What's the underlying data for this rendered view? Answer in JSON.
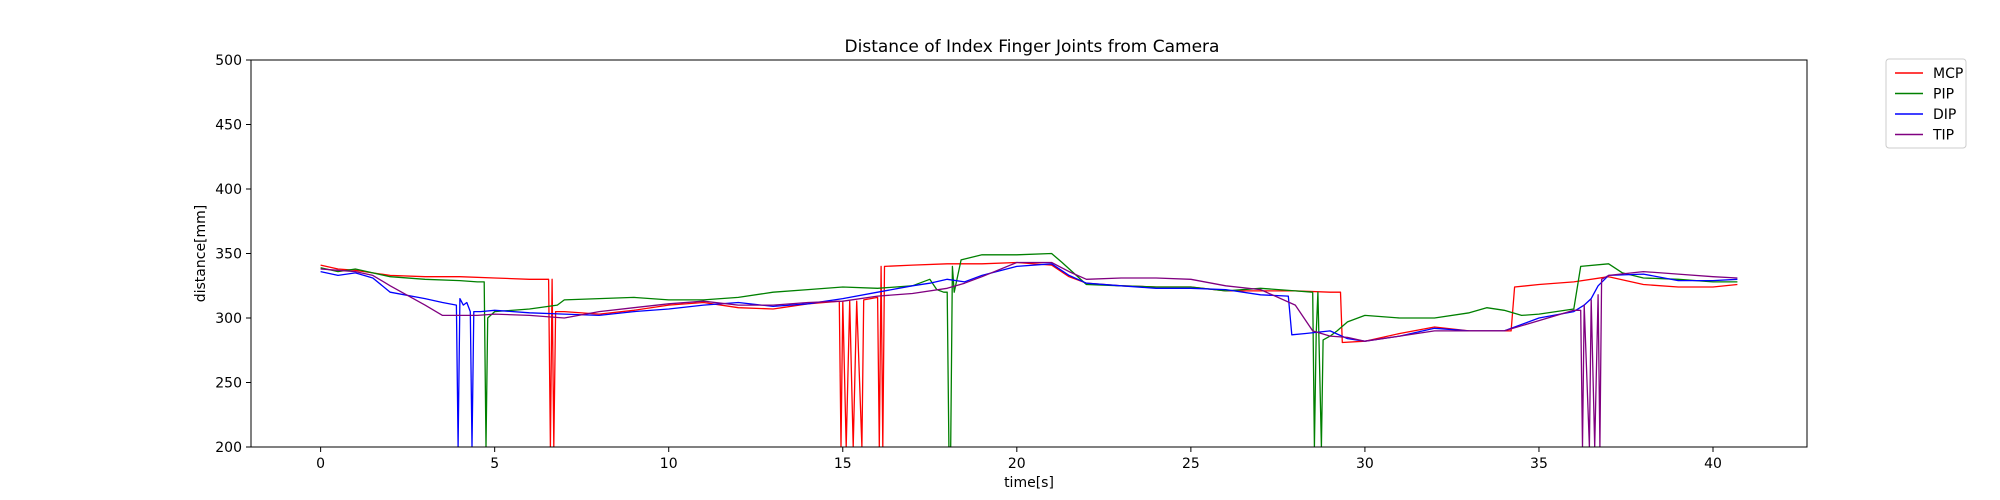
{
  "chart_data": {
    "type": "line",
    "title": "Distance of Index Finger Joints from Camera",
    "xlabel": "time[s]",
    "ylabel": "distance[mm]",
    "xlim": [
      -2,
      42.7
    ],
    "ylim": [
      200,
      500
    ],
    "xticks": [
      0,
      5,
      10,
      15,
      20,
      25,
      30,
      35,
      40
    ],
    "yticks": [
      200,
      250,
      300,
      350,
      400,
      450,
      500
    ],
    "grid": false,
    "legend_position": "outside-top-right",
    "series": [
      {
        "name": "MCP",
        "color": "#ff0000",
        "points": [
          [
            0,
            341
          ],
          [
            0.5,
            338
          ],
          [
            1,
            337
          ],
          [
            1.5,
            335
          ],
          [
            2,
            333
          ],
          [
            3,
            332
          ],
          [
            4,
            332
          ],
          [
            5,
            331
          ],
          [
            6,
            330
          ],
          [
            6.55,
            330
          ],
          [
            6.6,
            200
          ],
          [
            6.65,
            330
          ],
          [
            6.7,
            200
          ],
          [
            6.75,
            305
          ],
          [
            7,
            305
          ],
          [
            8,
            303
          ],
          [
            9,
            306
          ],
          [
            10,
            310
          ],
          [
            11,
            312
          ],
          [
            12,
            308
          ],
          [
            13,
            307
          ],
          [
            14,
            311
          ],
          [
            14.9,
            313
          ],
          [
            14.95,
            200
          ],
          [
            15,
            313
          ],
          [
            15.1,
            200
          ],
          [
            15.2,
            313
          ],
          [
            15.3,
            200
          ],
          [
            15.4,
            313
          ],
          [
            15.55,
            200
          ],
          [
            15.6,
            314
          ],
          [
            16,
            316
          ],
          [
            16.05,
            200
          ],
          [
            16.1,
            340
          ],
          [
            16.15,
            200
          ],
          [
            16.2,
            340
          ],
          [
            17,
            341
          ],
          [
            18,
            342
          ],
          [
            19,
            342
          ],
          [
            20,
            343
          ],
          [
            21,
            341
          ],
          [
            21.5,
            332
          ],
          [
            22,
            327
          ],
          [
            23,
            325
          ],
          [
            24,
            324
          ],
          [
            25,
            324
          ],
          [
            26,
            321
          ],
          [
            27,
            321
          ],
          [
            28,
            321
          ],
          [
            29,
            320
          ],
          [
            29.3,
            320
          ],
          [
            29.35,
            281
          ],
          [
            30,
            282
          ],
          [
            31,
            288
          ],
          [
            32,
            293
          ],
          [
            33,
            290
          ],
          [
            34,
            290
          ],
          [
            34.2,
            290
          ],
          [
            34.3,
            324
          ],
          [
            35,
            326
          ],
          [
            36,
            328
          ],
          [
            37,
            332
          ],
          [
            38,
            326
          ],
          [
            39,
            324
          ],
          [
            40,
            324
          ],
          [
            40.7,
            326
          ]
        ]
      },
      {
        "name": "PIP",
        "color": "#008000",
        "points": [
          [
            0,
            339
          ],
          [
            0.5,
            336
          ],
          [
            1,
            338
          ],
          [
            1.5,
            335
          ],
          [
            2,
            332
          ],
          [
            3,
            330
          ],
          [
            4,
            329
          ],
          [
            4.5,
            328
          ],
          [
            4.7,
            328
          ],
          [
            4.75,
            200
          ],
          [
            4.8,
            300
          ],
          [
            5,
            305
          ],
          [
            6,
            307
          ],
          [
            6.8,
            310
          ],
          [
            7,
            314
          ],
          [
            8,
            315
          ],
          [
            9,
            316
          ],
          [
            10,
            314
          ],
          [
            11,
            314
          ],
          [
            12,
            316
          ],
          [
            13,
            320
          ],
          [
            14,
            322
          ],
          [
            15,
            324
          ],
          [
            16,
            323
          ],
          [
            17,
            325
          ],
          [
            17.5,
            330
          ],
          [
            17.7,
            322
          ],
          [
            17.9,
            320
          ],
          [
            18,
            320
          ],
          [
            18.05,
            200
          ],
          [
            18.1,
            200
          ],
          [
            18.15,
            340
          ],
          [
            18.2,
            320
          ],
          [
            18.4,
            345
          ],
          [
            19,
            349
          ],
          [
            20,
            349
          ],
          [
            21,
            350
          ],
          [
            21.3,
            343
          ],
          [
            22,
            326
          ],
          [
            23,
            325
          ],
          [
            24,
            324
          ],
          [
            25,
            324
          ],
          [
            26,
            321
          ],
          [
            27,
            323
          ],
          [
            28,
            321
          ],
          [
            28.5,
            320
          ],
          [
            28.55,
            200
          ],
          [
            28.6,
            288
          ],
          [
            28.65,
            320
          ],
          [
            28.75,
            200
          ],
          [
            28.8,
            283
          ],
          [
            29,
            286
          ],
          [
            29.2,
            290
          ],
          [
            29.5,
            297
          ],
          [
            30,
            302
          ],
          [
            31,
            300
          ],
          [
            32,
            300
          ],
          [
            33,
            304
          ],
          [
            33.5,
            308
          ],
          [
            34,
            306
          ],
          [
            34.5,
            302
          ],
          [
            35,
            303
          ],
          [
            36,
            307
          ],
          [
            36.2,
            340
          ],
          [
            37,
            342
          ],
          [
            37.4,
            335
          ],
          [
            38,
            331
          ],
          [
            39,
            330
          ],
          [
            40,
            328
          ],
          [
            40.7,
            328
          ]
        ]
      },
      {
        "name": "DIP",
        "color": "#0000ff",
        "points": [
          [
            0,
            336
          ],
          [
            0.5,
            333
          ],
          [
            1,
            335
          ],
          [
            1.5,
            331
          ],
          [
            2,
            320
          ],
          [
            3,
            315
          ],
          [
            3.5,
            312
          ],
          [
            3.9,
            310
          ],
          [
            3.95,
            200
          ],
          [
            4,
            315
          ],
          [
            4.1,
            310
          ],
          [
            4.2,
            312
          ],
          [
            4.3,
            305
          ],
          [
            4.35,
            200
          ],
          [
            4.4,
            305
          ],
          [
            4.6,
            305
          ],
          [
            5,
            306
          ],
          [
            6,
            304
          ],
          [
            7,
            303
          ],
          [
            8,
            302
          ],
          [
            9,
            305
          ],
          [
            10,
            307
          ],
          [
            11,
            310
          ],
          [
            12,
            312
          ],
          [
            13,
            309
          ],
          [
            14,
            311
          ],
          [
            15,
            315
          ],
          [
            16,
            320
          ],
          [
            17,
            325
          ],
          [
            17.5,
            327
          ],
          [
            18,
            330
          ],
          [
            18.5,
            328
          ],
          [
            19,
            333
          ],
          [
            20,
            340
          ],
          [
            21,
            342
          ],
          [
            21.5,
            333
          ],
          [
            22,
            327
          ],
          [
            23,
            325
          ],
          [
            24,
            323
          ],
          [
            25,
            323
          ],
          [
            26,
            322
          ],
          [
            27,
            318
          ],
          [
            27.8,
            317
          ],
          [
            27.9,
            287
          ],
          [
            28.3,
            288
          ],
          [
            29,
            290
          ],
          [
            29.5,
            284
          ],
          [
            30,
            282
          ],
          [
            31,
            286
          ],
          [
            32,
            292
          ],
          [
            33,
            290
          ],
          [
            34,
            290
          ],
          [
            35,
            300
          ],
          [
            36,
            305
          ],
          [
            36.3,
            310
          ],
          [
            36.5,
            315
          ],
          [
            36.7,
            325
          ],
          [
            37,
            333
          ],
          [
            38,
            334
          ],
          [
            39,
            329
          ],
          [
            40,
            329
          ],
          [
            40.7,
            330
          ]
        ]
      },
      {
        "name": "TIP",
        "color": "#800080",
        "points": [
          [
            0,
            338
          ],
          [
            0.5,
            337
          ],
          [
            1,
            336
          ],
          [
            1.5,
            333
          ],
          [
            2,
            325
          ],
          [
            3,
            310
          ],
          [
            3.5,
            302
          ],
          [
            4,
            302
          ],
          [
            4.5,
            302
          ],
          [
            5,
            303
          ],
          [
            6,
            302
          ],
          [
            7,
            300
          ],
          [
            8,
            305
          ],
          [
            9,
            308
          ],
          [
            10,
            311
          ],
          [
            11,
            313
          ],
          [
            12,
            310
          ],
          [
            13,
            310
          ],
          [
            14,
            312
          ],
          [
            15,
            313
          ],
          [
            16,
            317
          ],
          [
            17,
            319
          ],
          [
            18,
            323
          ],
          [
            18.5,
            327
          ],
          [
            19,
            332
          ],
          [
            20,
            343
          ],
          [
            21,
            343
          ],
          [
            21.5,
            336
          ],
          [
            22,
            330
          ],
          [
            23,
            331
          ],
          [
            24,
            331
          ],
          [
            25,
            330
          ],
          [
            26,
            325
          ],
          [
            27,
            322
          ],
          [
            28,
            310
          ],
          [
            28.5,
            290
          ],
          [
            29,
            286
          ],
          [
            29.5,
            285
          ],
          [
            30,
            282
          ],
          [
            31,
            286
          ],
          [
            32,
            290
          ],
          [
            33,
            290
          ],
          [
            34,
            290
          ],
          [
            35,
            298
          ],
          [
            36,
            306
          ],
          [
            36.2,
            306
          ],
          [
            36.25,
            200
          ],
          [
            36.3,
            310
          ],
          [
            36.45,
            200
          ],
          [
            36.5,
            314
          ],
          [
            36.6,
            200
          ],
          [
            36.7,
            318
          ],
          [
            36.75,
            200
          ],
          [
            36.8,
            330
          ],
          [
            37,
            333
          ],
          [
            38,
            336
          ],
          [
            39,
            334
          ],
          [
            40,
            332
          ],
          [
            40.7,
            331
          ]
        ]
      }
    ]
  }
}
